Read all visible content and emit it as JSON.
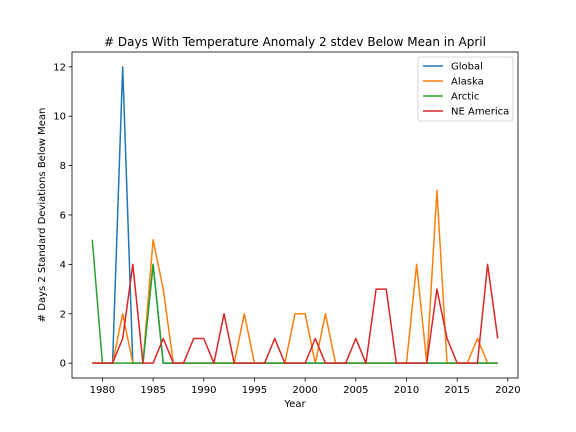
{
  "chart_data": {
    "type": "line",
    "title": "# Days With Temperature Anomaly 2 stdev Below Mean in April",
    "xlabel": "Year",
    "ylabel": "# Days 2 Standard Deviations Below Mean",
    "xlim": [
      1977,
      2021
    ],
    "ylim": [
      -0.6,
      12.6
    ],
    "xticks": [
      1980,
      1985,
      1990,
      1995,
      2000,
      2005,
      2010,
      2015,
      2020
    ],
    "yticks": [
      0,
      2,
      4,
      6,
      8,
      10,
      12
    ],
    "grid": false,
    "legend_position": "top-right",
    "x": [
      1979,
      1980,
      1981,
      1982,
      1983,
      1984,
      1985,
      1986,
      1987,
      1988,
      1989,
      1990,
      1991,
      1992,
      1993,
      1994,
      1995,
      1996,
      1997,
      1998,
      1999,
      2000,
      2001,
      2002,
      2003,
      2004,
      2005,
      2006,
      2007,
      2008,
      2009,
      2010,
      2011,
      2012,
      2013,
      2014,
      2015,
      2016,
      2017,
      2018,
      2019
    ],
    "series": [
      {
        "name": "Global",
        "color": "#1f77b4",
        "values": [
          0,
          0,
          0,
          12,
          0,
          0,
          4,
          0,
          0,
          0,
          0,
          0,
          0,
          0,
          0,
          0,
          0,
          0,
          0,
          0,
          0,
          0,
          0,
          0,
          0,
          0,
          0,
          0,
          0,
          0,
          0,
          0,
          0,
          0,
          0,
          0,
          0,
          0,
          0,
          0,
          0
        ]
      },
      {
        "name": "Alaska",
        "color": "#ff7f0e",
        "values": [
          0,
          0,
          0,
          2,
          0,
          0,
          5,
          3,
          0,
          0,
          0,
          0,
          0,
          0,
          0,
          2,
          0,
          0,
          0,
          0,
          2,
          2,
          0,
          2,
          0,
          0,
          0,
          0,
          0,
          0,
          0,
          0,
          4,
          0,
          7,
          0,
          0,
          0,
          1,
          0,
          0
        ]
      },
      {
        "name": "Arctic",
        "color": "#2ca02c",
        "values": [
          5,
          0,
          0,
          0,
          0,
          0,
          4,
          0,
          0,
          0,
          0,
          0,
          0,
          0,
          0,
          0,
          0,
          0,
          0,
          0,
          0,
          0,
          0,
          0,
          0,
          0,
          0,
          0,
          0,
          0,
          0,
          0,
          0,
          0,
          0,
          0,
          0,
          0,
          0,
          0,
          0
        ]
      },
      {
        "name": "NE America",
        "color": "#d62728",
        "values": [
          0,
          0,
          0,
          1,
          4,
          0,
          0,
          1,
          0,
          0,
          1,
          1,
          0,
          2,
          0,
          0,
          0,
          0,
          1,
          0,
          0,
          0,
          1,
          0,
          0,
          0,
          1,
          0,
          3,
          3,
          0,
          0,
          0,
          0,
          3,
          1,
          0,
          0,
          0,
          4,
          1
        ]
      }
    ]
  }
}
